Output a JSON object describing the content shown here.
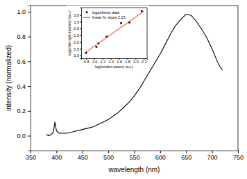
{
  "chart_data": [
    {
      "type": "line",
      "x_label": "wavelength (nm)",
      "y_label": "intensity (normalized)",
      "xlim": [
        350,
        750
      ],
      "ylim": [
        -0.12,
        1.05
      ],
      "xticks": [
        350,
        400,
        450,
        500,
        550,
        600,
        650,
        700,
        750
      ],
      "yticks": [
        {
          "value": 0,
          "label": "0.0"
        },
        0.2,
        0.4,
        0.6,
        0.8,
        {
          "value": 1,
          "label": "1.0"
        }
      ],
      "series": [
        {
          "color": "#000000",
          "x": [
            380,
            385,
            390,
            394,
            397,
            400,
            405,
            410,
            420,
            430,
            440,
            450,
            460,
            470,
            480,
            490,
            500,
            510,
            520,
            530,
            540,
            550,
            560,
            570,
            580,
            590,
            600,
            610,
            620,
            630,
            640,
            650,
            660,
            670,
            680,
            690,
            700,
            710,
            715,
            720
          ],
          "values": [
            0.01,
            0.0,
            0.01,
            0.03,
            0.11,
            0.04,
            0.02,
            0.02,
            0.02,
            0.03,
            0.04,
            0.05,
            0.06,
            0.07,
            0.09,
            0.11,
            0.13,
            0.16,
            0.19,
            0.23,
            0.27,
            0.32,
            0.38,
            0.45,
            0.52,
            0.59,
            0.66,
            0.74,
            0.82,
            0.89,
            0.94,
            0.98,
            0.97,
            0.92,
            0.86,
            0.79,
            0.7,
            0.6,
            0.56,
            0.53
          ]
        }
      ]
    },
    {
      "type": "scatter",
      "x_label": "log(incident power) (a.u.)",
      "y_label": "log(white light intensity) (a.u.)",
      "xlim": [
        0.68,
        2.28
      ],
      "ylim": [
        -0.2,
        3.55
      ],
      "xticks": [
        0.8,
        {
          "value": 1,
          "label": "1.0"
        },
        1.2,
        1.4,
        1.6,
        1.8,
        {
          "value": 2,
          "label": "2.0"
        },
        2.2
      ],
      "yticks": [
        {
          "value": 0,
          "label": "0.0"
        },
        0.5,
        {
          "value": 1,
          "label": "1.0"
        },
        1.5,
        {
          "value": 2,
          "label": "2.0"
        },
        2.5,
        {
          "value": 3,
          "label": "3.0"
        }
      ],
      "legend": "upper left",
      "series": [
        {
          "name": "logarithmic data",
          "type": "scatter",
          "marker": "square",
          "color": "#000000",
          "x": [
            0.8,
            1.05,
            1.1,
            1.3,
            1.65,
            1.85,
            2.15
          ],
          "values": [
            0.2,
            0.65,
            0.9,
            1.4,
            2.4,
            2.45,
            3.3
          ]
        },
        {
          "name": "linear fit, slope 2.15",
          "type": "line",
          "line_style": "solid",
          "color": "#ff0000",
          "x": [
            0.8,
            2.2
          ],
          "values": [
            0.27,
            3.28
          ]
        }
      ]
    }
  ]
}
